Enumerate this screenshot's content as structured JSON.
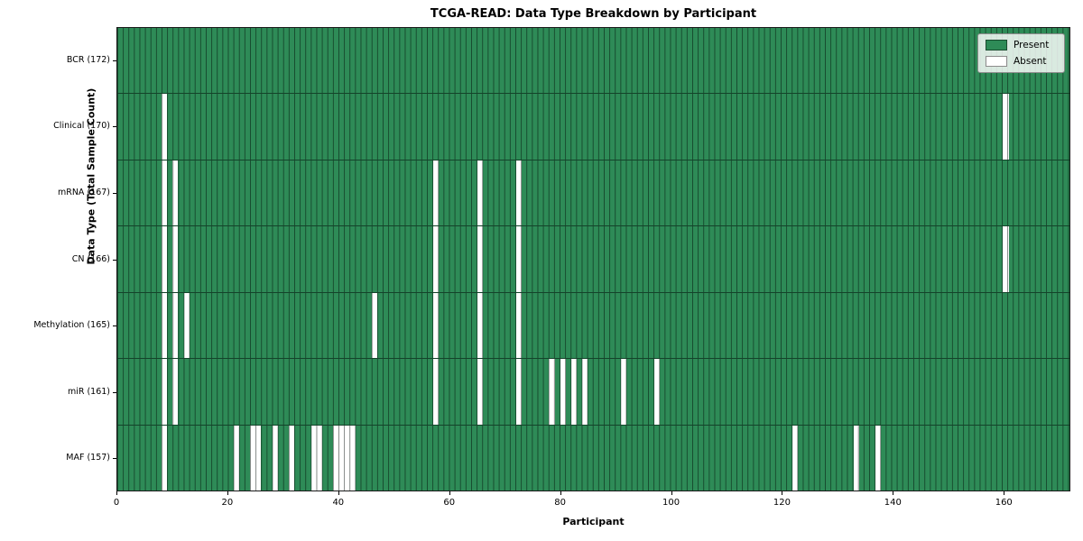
{
  "title": "TCGA-READ: Data Type Breakdown by Participant",
  "xlabel": "Participant",
  "ylabel": "Data Type (Total Sample Count)",
  "legend": {
    "present_label": "Present",
    "absent_label": "Absent"
  },
  "colors": {
    "present": "#2e8b57",
    "absent": "#ffffff",
    "cell_edge": "rgba(0,10,5,0.5)"
  },
  "chart_data": {
    "type": "heatmap",
    "x_axis": {
      "label": "Participant",
      "min": 0,
      "max": 172,
      "ticks": [
        0,
        20,
        40,
        60,
        80,
        100,
        120,
        140,
        160
      ]
    },
    "n_participants": 172,
    "legend_position": "upper right",
    "value_legend": {
      "present": "Present",
      "absent": "Absent"
    },
    "rows": [
      {
        "label": "BCR (172)",
        "data_type": "BCR",
        "total_sample_count": 172,
        "absent_participants": []
      },
      {
        "label": "Clinical (170)",
        "data_type": "Clinical",
        "total_sample_count": 170,
        "absent_participants": [
          8,
          160
        ]
      },
      {
        "label": "mRNA (167)",
        "data_type": "mRNA",
        "total_sample_count": 167,
        "absent_participants": [
          8,
          10,
          57,
          65,
          72
        ]
      },
      {
        "label": "CN (166)",
        "data_type": "CN",
        "total_sample_count": 166,
        "absent_participants": [
          8,
          10,
          57,
          65,
          72,
          160
        ]
      },
      {
        "label": "Methylation (165)",
        "data_type": "Methylation",
        "total_sample_count": 165,
        "absent_participants": [
          8,
          10,
          12,
          46,
          57,
          65,
          72
        ]
      },
      {
        "label": "miR (161)",
        "data_type": "miR",
        "total_sample_count": 161,
        "absent_participants": [
          8,
          10,
          57,
          65,
          72,
          78,
          80,
          82,
          84,
          91,
          97
        ]
      },
      {
        "label": "MAF (157)",
        "data_type": "MAF",
        "total_sample_count": 157,
        "absent_participants": [
          8,
          21,
          24,
          25,
          28,
          31,
          35,
          36,
          39,
          40,
          41,
          42,
          122,
          133,
          137
        ]
      }
    ]
  }
}
